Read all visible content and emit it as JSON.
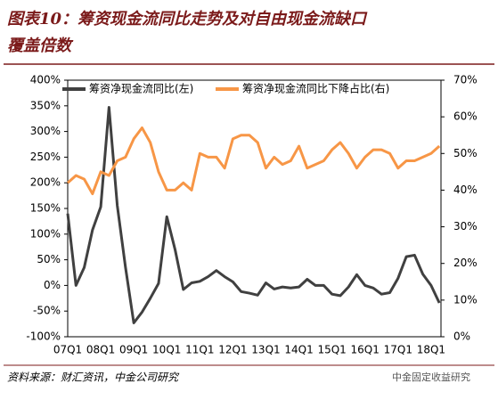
{
  "chart_data": {
    "type": "line",
    "title": "图表10：筹资现金流同比走势及对自由现金流缺口覆盖倍数",
    "source": "资料来源：财汇资讯，中金公司研究",
    "watermark": "中金固定收益研究",
    "categories": [
      "07Q1",
      null,
      null,
      null,
      "08Q1",
      null,
      null,
      null,
      "09Q1",
      null,
      null,
      null,
      "10Q1",
      null,
      null,
      null,
      "11Q1",
      null,
      null,
      null,
      "12Q1",
      null,
      null,
      null,
      "13Q1",
      null,
      null,
      null,
      "14Q1",
      null,
      null,
      null,
      "15Q1",
      null,
      null,
      null,
      "16Q1",
      null,
      null,
      null,
      "17Q1",
      null,
      null,
      null,
      "18Q1",
      null
    ],
    "series": [
      {
        "name": "筹资净现金流同比(左)",
        "color": "#404040",
        "values": [
          140,
          0,
          35,
          108,
          153,
          347,
          156,
          35,
          -73,
          -52,
          -25,
          4,
          134,
          70,
          -8,
          5,
          8,
          17,
          29,
          17,
          7,
          -12,
          -15,
          -19,
          5,
          -7,
          -3,
          -5,
          -3,
          12,
          0,
          0,
          -17,
          -20,
          -3,
          21,
          0,
          -5,
          -17,
          -14,
          14,
          56,
          59,
          22,
          0,
          -34
        ]
      },
      {
        "name": "筹资净现金流同比下降占比(右)",
        "color": "#f79646",
        "axis": "y2",
        "values": [
          42,
          44,
          43,
          39,
          45,
          44,
          48,
          49,
          54,
          57,
          53,
          45,
          40,
          40,
          42,
          40,
          50,
          49,
          49,
          46,
          54,
          55,
          55,
          53,
          46,
          49,
          47,
          48,
          52,
          46,
          47,
          48,
          51,
          53,
          50,
          46,
          49,
          51,
          51,
          50,
          46,
          48,
          48,
          49,
          50,
          52
        ]
      }
    ],
    "ylim": [
      -100,
      400
    ],
    "yticks": [
      {
        "value": -100,
        "label": "-100%"
      },
      {
        "value": -50,
        "label": "-50%"
      },
      {
        "value": 0,
        "label": "0%"
      },
      {
        "value": 50,
        "label": "50%"
      },
      {
        "value": 100,
        "label": "100%"
      },
      {
        "value": 150,
        "label": "150%"
      },
      {
        "value": 200,
        "label": "200%"
      },
      {
        "value": 250,
        "label": "250%"
      },
      {
        "value": 300,
        "label": "300%"
      },
      {
        "value": 350,
        "label": "350%"
      },
      {
        "value": 400,
        "label": "400%"
      }
    ],
    "y2lim": [
      0,
      70
    ],
    "y2ticks": [
      {
        "value": 0,
        "label": "0%"
      },
      {
        "value": 10,
        "label": "10%"
      },
      {
        "value": 20,
        "label": "20%"
      },
      {
        "value": 30,
        "label": "30%"
      },
      {
        "value": 40,
        "label": "40%"
      },
      {
        "value": 50,
        "label": "50%"
      },
      {
        "value": 60,
        "label": "60%"
      },
      {
        "value": 70,
        "label": "70%"
      }
    ]
  }
}
